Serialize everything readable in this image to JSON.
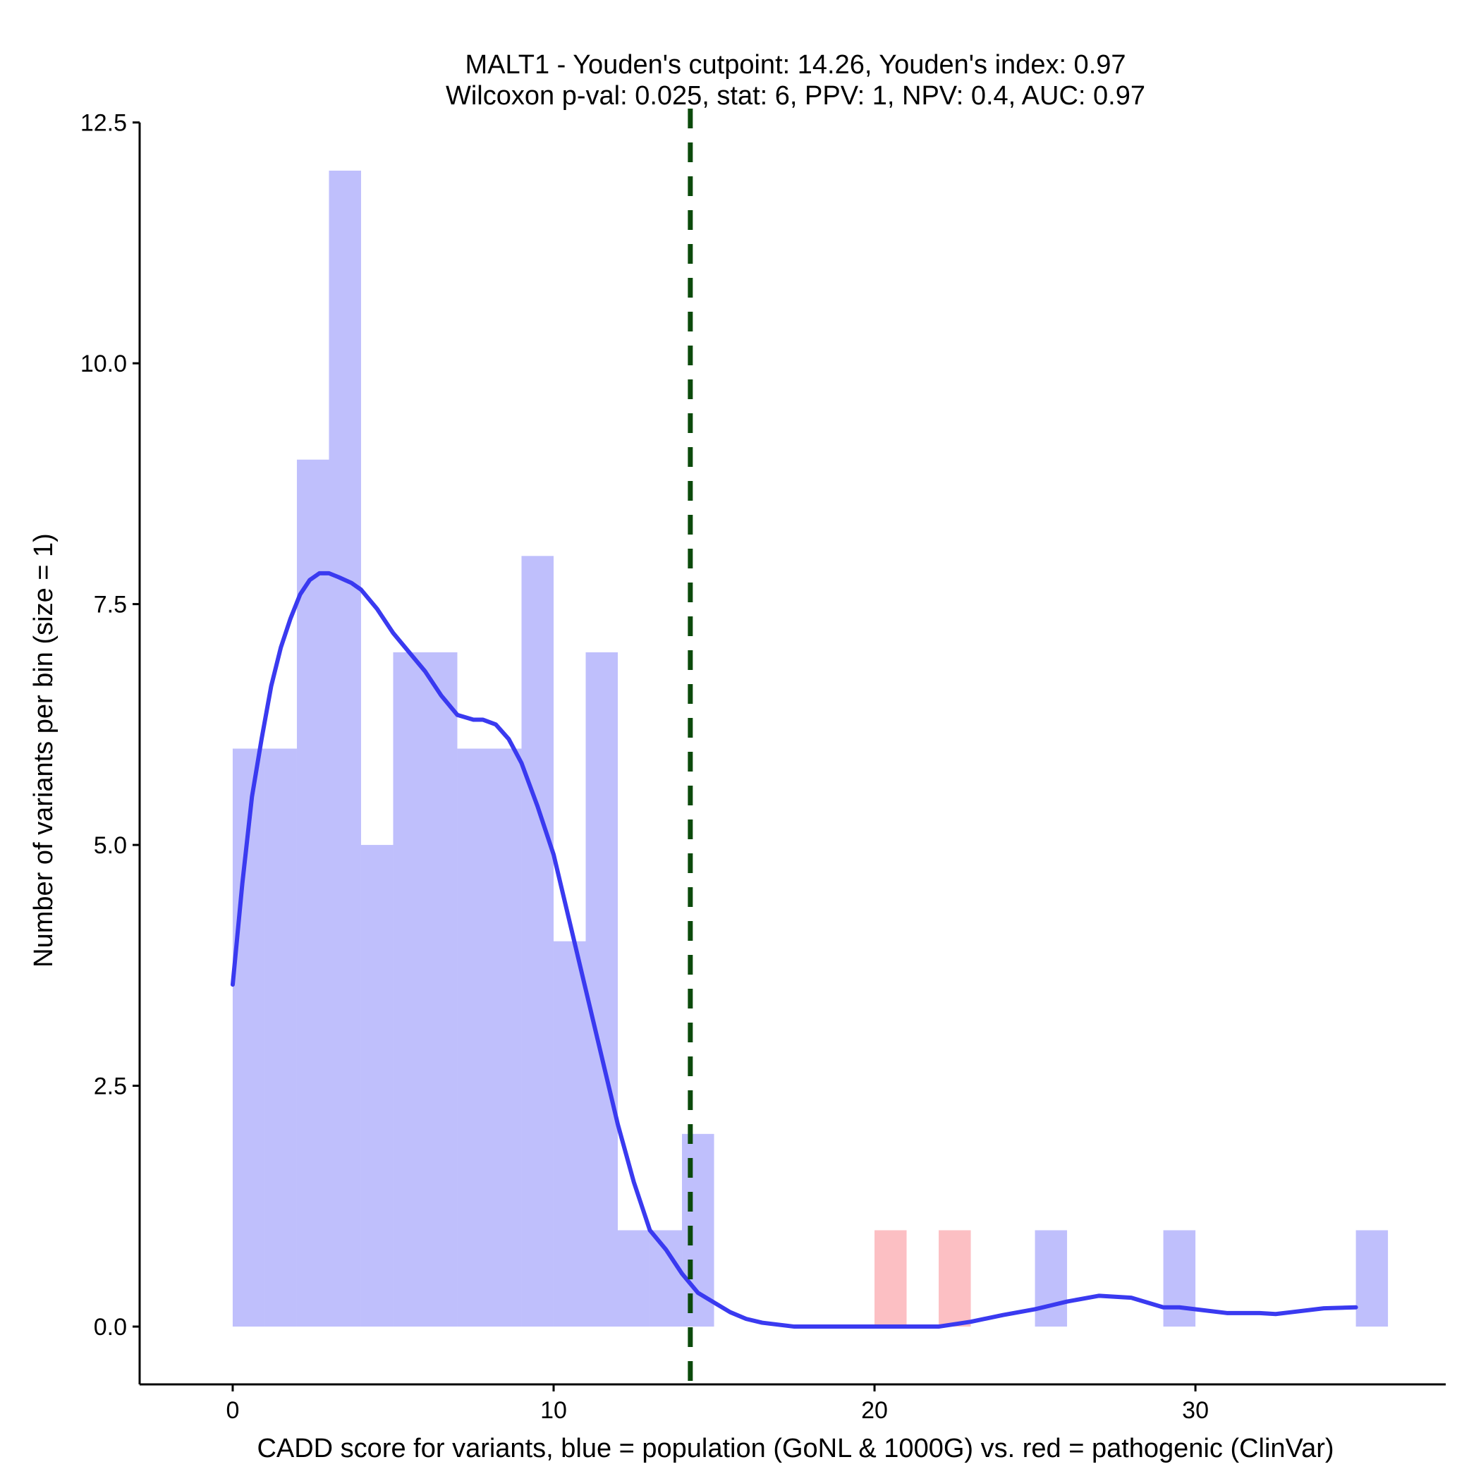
{
  "chart_data": {
    "type": "bar",
    "title": "MALT1 - Youden's cutpoint: 14.26, Youden's index: 0.97",
    "subtitle": "Wilcoxon p-val: 0.025, stat: 6, PPV: 1, NPV: 0.4, AUC: 0.97",
    "xlabel": "CADD score for variants, blue = population (GoNL & 1000G) vs. red = pathogenic (ClinVar)",
    "ylabel": "Number of variants per bin (size = 1)",
    "xlim": [
      -2.9,
      37.8
    ],
    "ylim": [
      -0.6,
      12.6
    ],
    "x_ticks": [
      0,
      10,
      20,
      30
    ],
    "y_ticks": [
      "0.0",
      "2.5",
      "5.0",
      "7.5",
      "10.0",
      "12.5"
    ],
    "grid": false,
    "bin_width": 1,
    "colors": {
      "population_bar": "#bfbffc",
      "pathogenic_bar": "#fcbfc3",
      "density_line": "#3a3af0",
      "cutpoint_line": "#0b4a0b",
      "axis": "#000000"
    },
    "series": [
      {
        "kind": "population",
        "bins": [
          {
            "start": 0,
            "count": 6
          },
          {
            "start": 1,
            "count": 6
          },
          {
            "start": 2,
            "count": 9
          },
          {
            "start": 3,
            "count": 12
          },
          {
            "start": 4,
            "count": 5
          },
          {
            "start": 5,
            "count": 7
          },
          {
            "start": 6,
            "count": 7
          },
          {
            "start": 7,
            "count": 6
          },
          {
            "start": 8,
            "count": 6
          },
          {
            "start": 9,
            "count": 8
          },
          {
            "start": 10,
            "count": 4
          },
          {
            "start": 11,
            "count": 7
          },
          {
            "start": 12,
            "count": 1
          },
          {
            "start": 13,
            "count": 1
          },
          {
            "start": 14,
            "count": 2
          },
          {
            "start": 25,
            "count": 1
          },
          {
            "start": 29,
            "count": 1
          },
          {
            "start": 35,
            "count": 1
          }
        ]
      },
      {
        "kind": "pathogenic",
        "bins": [
          {
            "start": 20,
            "count": 1
          },
          {
            "start": 22,
            "count": 1
          }
        ]
      }
    ],
    "density_curve": {
      "x": [
        0,
        0.3,
        0.6,
        0.9,
        1.2,
        1.5,
        1.8,
        2.1,
        2.4,
        2.7,
        3.0,
        3.3,
        3.5,
        3.7,
        4.0,
        4.5,
        5.0,
        5.5,
        6.0,
        6.5,
        7.0,
        7.5,
        7.8,
        8.2,
        8.6,
        9.0,
        9.5,
        10.0,
        10.5,
        11.0,
        11.5,
        12.0,
        12.5,
        13.0,
        13.5,
        14.0,
        14.5,
        15.0,
        15.5,
        16.0,
        16.5,
        17.0,
        17.5,
        18.0,
        19.0,
        20.0,
        21.0,
        22.0,
        23.0,
        24.0,
        25.0,
        25.5,
        26.0,
        27.0,
        28.0,
        29.0,
        29.5,
        30.0,
        31.0,
        31.5,
        32.0,
        32.5,
        33.0,
        34.0,
        35.0
      ],
      "y": [
        3.55,
        4.6,
        5.5,
        6.1,
        6.65,
        7.05,
        7.35,
        7.6,
        7.75,
        7.82,
        7.82,
        7.78,
        7.75,
        7.72,
        7.65,
        7.45,
        7.2,
        7.0,
        6.8,
        6.55,
        6.35,
        6.3,
        6.3,
        6.25,
        6.1,
        5.85,
        5.4,
        4.9,
        4.2,
        3.5,
        2.8,
        2.1,
        1.5,
        1.0,
        0.8,
        0.55,
        0.35,
        0.25,
        0.15,
        0.08,
        0.04,
        0.02,
        0.0,
        0.0,
        0.0,
        0.0,
        0.0,
        0.0,
        0.05,
        0.12,
        0.18,
        0.22,
        0.26,
        0.32,
        0.3,
        0.2,
        0.2,
        0.18,
        0.14,
        0.14,
        0.14,
        0.13,
        0.15,
        0.19,
        0.2
      ]
    },
    "cutpoint": 14.26
  }
}
